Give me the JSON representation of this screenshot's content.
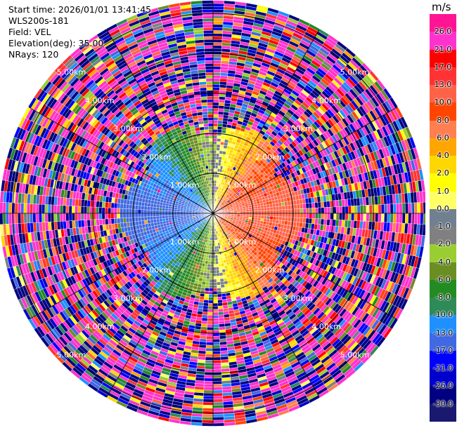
{
  "info": {
    "start_time": "Start time: 2026/01/01 13:41:45",
    "site": "WLS200s-181",
    "field": "Field: VEL",
    "elevation": "Elevation(deg): 35.00",
    "nrays": "NRays: 120"
  },
  "colorbar": {
    "unit": "m/s",
    "labels": [
      "26.0",
      "21.0",
      "17.0",
      "13.0",
      "10.0",
      "8.0",
      "6.0",
      "4.0",
      "2.0",
      "1.0",
      "0.0",
      "-1.0",
      "-2.0",
      "-4.0",
      "-6.0",
      "-8.0",
      "-10.0",
      "-13.0",
      "-17.0",
      "-21.0",
      "-26.0",
      "-30.0"
    ],
    "colors": [
      "#ff1493",
      "#ff33cc",
      "#ff0000",
      "#ff3333",
      "#ff6347",
      "#ff4500",
      "#ff7f50",
      "#ffa500",
      "#ffd700",
      "#ffff00",
      "#ffff66",
      "#708090",
      "#808080",
      "#9acd32",
      "#6b8e23",
      "#228b22",
      "#2e8b57",
      "#1e90ff",
      "#4169e1",
      "#0000ff",
      "#0000cd",
      "#000080",
      "#191970"
    ]
  },
  "chart_data": {
    "type": "heatmap",
    "projection": "polar-ppi",
    "field": "VEL",
    "units": "m/s",
    "n_rays": 120,
    "range_rings_km": [
      1.0,
      2.0,
      3.0,
      4.0,
      5.0
    ],
    "ring_labels": [
      "1.00km",
      "2.00km",
      "3.00km",
      "4.00km",
      "5.00km"
    ],
    "max_range_km": 5.3,
    "valid_range_km": 2.1,
    "valid_region_pattern": {
      "west": -17.0,
      "northwest": -10.0,
      "north": -2.0,
      "northeast": 4.0,
      "east": 10.0,
      "southeast": 10.0,
      "south": 4.0,
      "southwest": -8.0
    },
    "clim": [
      -30.0,
      26.0
    ]
  }
}
